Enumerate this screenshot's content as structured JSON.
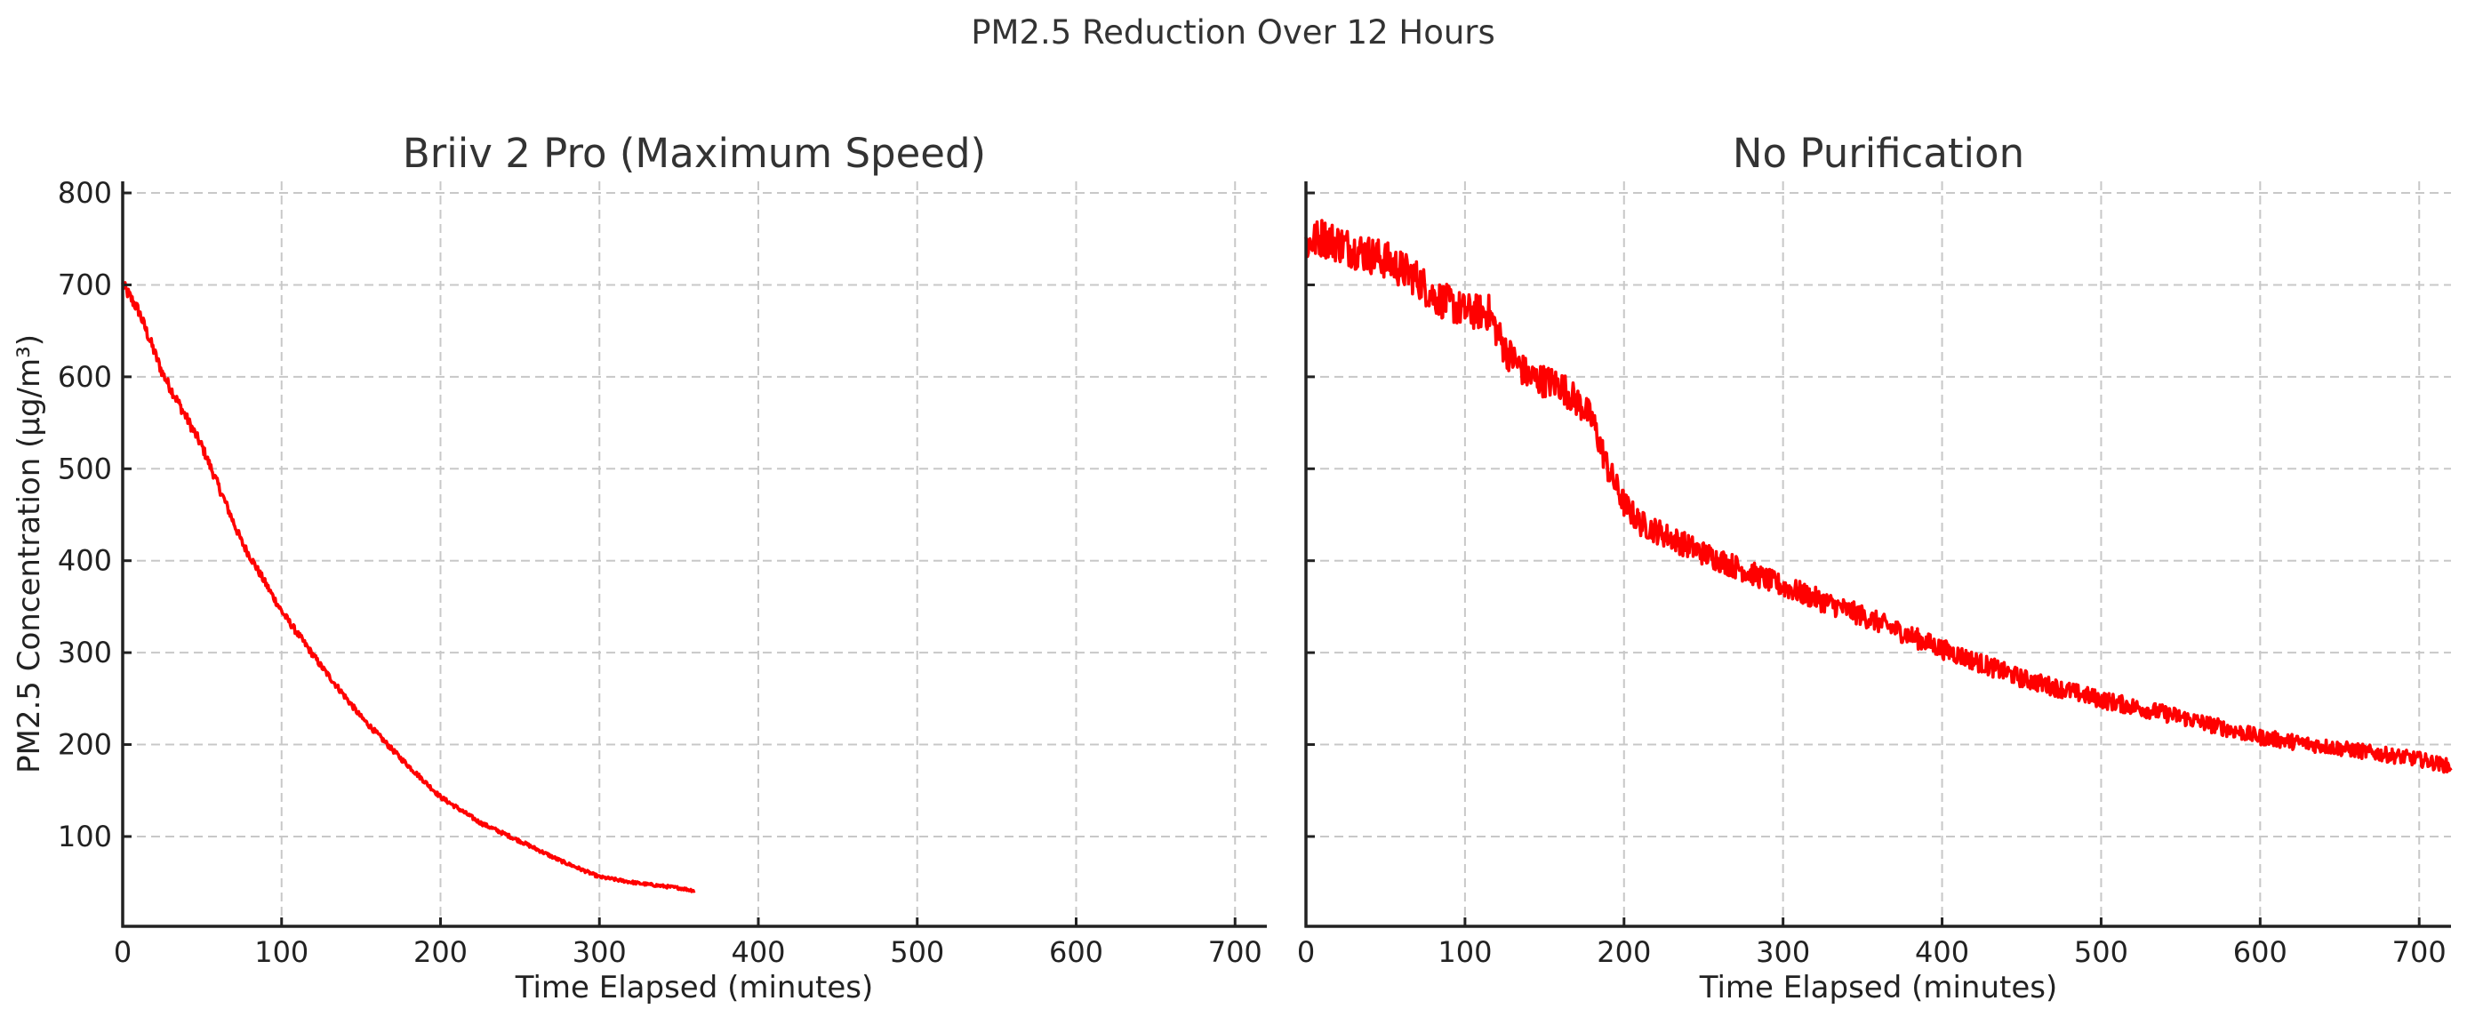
{
  "figure": {
    "suptitle": "PM2.5 Reduction Over 12 Hours"
  },
  "colors": {
    "line": "#ff0000",
    "grid": "#c8c8c8",
    "text": "#333333",
    "spine": "#222222"
  },
  "chart_data": [
    {
      "type": "line",
      "title": "Briiv 2 Pro (Maximum Speed)",
      "xlabel": "Time Elapsed (minutes)",
      "ylabel": "PM2.5 Concentration (µg/m³)",
      "xlim": [
        0,
        720
      ],
      "ylim": [
        2.3,
        812.6
      ],
      "xticks": [
        0,
        100,
        200,
        300,
        400,
        500,
        600,
        700
      ],
      "xtick_labels": [
        "0",
        "100",
        "200",
        "300",
        "400",
        "500",
        "600",
        "700"
      ],
      "yticks": [
        100,
        200,
        300,
        400,
        500,
        600,
        700,
        800
      ],
      "ytick_labels": [
        "100",
        "200",
        "300",
        "400",
        "500",
        "600",
        "700",
        "800"
      ],
      "show_ytick_labels": true,
      "grid": true,
      "legend": null,
      "series": [
        {
          "name": "Briiv 2 Pro",
          "color": "#ff0000",
          "noise": 4,
          "x": [
            0,
            10,
            25,
            50,
            75,
            100,
            125,
            150,
            175,
            200,
            225,
            250,
            275,
            300,
            325,
            350,
            360
          ],
          "y": [
            700,
            672,
            604,
            524,
            420,
            345,
            285,
            230,
            185,
            143,
            115,
            95,
            74,
            56,
            49,
            44,
            41
          ]
        }
      ]
    },
    {
      "type": "line",
      "title": "No Purification",
      "xlabel": "Time Elapsed (minutes)",
      "ylabel": "",
      "xlim": [
        0,
        720
      ],
      "ylim": [
        2.3,
        812.6
      ],
      "xticks": [
        0,
        100,
        200,
        300,
        400,
        500,
        600,
        700
      ],
      "xtick_labels": [
        "0",
        "100",
        "200",
        "300",
        "400",
        "500",
        "600",
        "700"
      ],
      "yticks": [
        100,
        200,
        300,
        400,
        500,
        600,
        700,
        800
      ],
      "ytick_labels": [],
      "show_ytick_labels": false,
      "grid": true,
      "legend": null,
      "series": [
        {
          "name": "No Purification",
          "color": "#ff0000",
          "noise": 12,
          "x": [
            0,
            10,
            30,
            50,
            70,
            80,
            100,
            115,
            125,
            140,
            160,
            175,
            180,
            190,
            200,
            210,
            250,
            300,
            350,
            400,
            450,
            500,
            550,
            600,
            650,
            700,
            720
          ],
          "y": [
            744,
            752,
            739,
            727,
            707,
            688,
            671,
            670,
            630,
            600,
            591,
            565,
            553,
            500,
            462,
            441,
            408,
            372,
            340,
            304,
            272,
            249,
            230,
            208,
            196,
            184,
            176
          ]
        }
      ]
    }
  ]
}
